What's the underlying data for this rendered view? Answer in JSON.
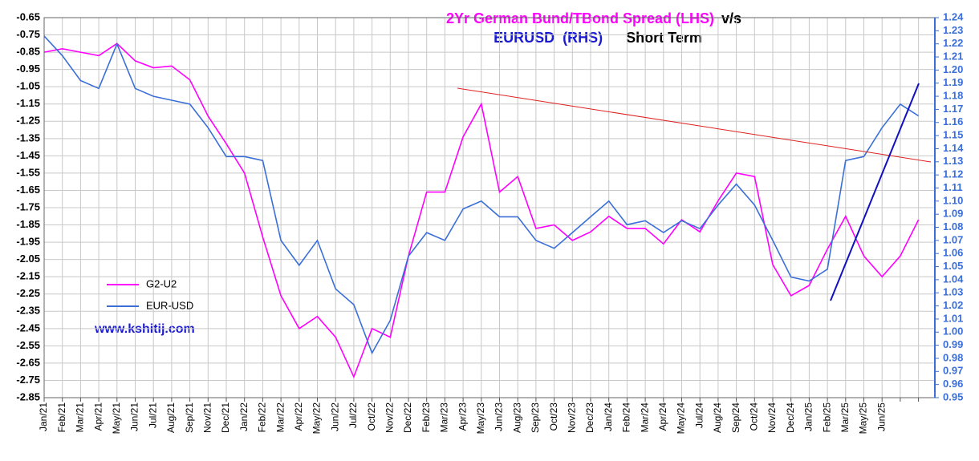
{
  "chart_data": {
    "type": "line",
    "title": [
      "2Yr German Bund/TBond Spread (LHS)",
      "v/s",
      "EURUSD  (RHS)",
      "Short Term"
    ],
    "annotation": "www.kshitij.com",
    "categories": [
      "Jan/21",
      "Feb/21",
      "Mar/21",
      "Apr/21",
      "May/21",
      "Jun/21",
      "Jul/21",
      "Aug/21",
      "Sep/21",
      "Nov/21",
      "Dec/21",
      "Jan/22",
      "Feb/22",
      "Mar/22",
      "Apr/22",
      "May/22",
      "Jun/22",
      "Jul/22",
      "Oct/22",
      "Nov/22",
      "Dec/22",
      "Feb/23",
      "Mar/23",
      "Apr/23",
      "May/23",
      "Jun/23",
      "Aug/23",
      "Sep/23",
      "Oct/23",
      "Nov/23",
      "Dec/23",
      "Jan/24",
      "Feb/24",
      "Mar/24",
      "Apr/24",
      "May/24",
      "Jul/24",
      "Aug/24",
      "Sep/24",
      "Oct/24",
      "Nov/24",
      "Dec/24",
      "Jan/25",
      "Feb/25",
      "Mar/25",
      "May/25",
      "Jun/25",
      null,
      null
    ],
    "series": [
      {
        "name": "G2-U2",
        "color": "#ff00ff",
        "axis": "y",
        "values": [
          -0.85,
          -0.83,
          -0.85,
          -0.87,
          -0.8,
          -0.9,
          -0.94,
          -0.93,
          -1.01,
          -1.22,
          -1.38,
          -1.55,
          -1.92,
          -2.26,
          -2.45,
          -2.38,
          -2.5,
          -2.73,
          -2.45,
          -2.5,
          -2.03,
          -1.66,
          -1.66,
          -1.34,
          -1.15,
          -1.66,
          -1.57,
          -1.87,
          -1.85,
          -1.94,
          -1.89,
          -1.8,
          -1.87,
          -1.87,
          -1.96,
          -1.82,
          -1.89,
          -1.71,
          -1.55,
          -1.57,
          -2.08,
          -2.26,
          -2.2,
          -1.99,
          -1.8,
          -2.03,
          -2.15,
          -2.03,
          -1.82
        ]
      },
      {
        "name": "EUR-USD",
        "color": "#3a6fd8",
        "axis": "y2",
        "values": [
          1.226,
          1.211,
          1.192,
          1.186,
          1.22,
          1.186,
          1.18,
          1.177,
          1.174,
          1.156,
          1.134,
          1.134,
          1.131,
          1.07,
          1.051,
          1.07,
          1.033,
          1.021,
          0.984,
          1.009,
          1.058,
          1.076,
          1.07,
          1.094,
          1.1,
          1.088,
          1.088,
          1.07,
          1.064,
          1.076,
          1.088,
          1.1,
          1.082,
          1.085,
          1.076,
          1.085,
          1.079,
          1.097,
          1.113,
          1.097,
          1.07,
          1.042,
          1.039,
          1.048,
          1.131,
          1.134,
          1.156,
          1.174,
          1.165
        ]
      }
    ],
    "ylim": [
      -2.85,
      -0.65
    ],
    "yticks": [
      -0.65,
      -0.75,
      -0.85,
      -0.95,
      -1.05,
      -1.15,
      -1.25,
      -1.35,
      -1.45,
      -1.55,
      -1.65,
      -1.75,
      -1.85,
      -1.95,
      -2.05,
      -2.15,
      -2.25,
      -2.35,
      -2.45,
      -2.55,
      -2.65,
      -2.75,
      -2.85
    ],
    "y2lim": [
      0.95,
      1.24
    ],
    "y2ticks": [
      1.24,
      1.23,
      1.22,
      1.21,
      {
        "value": 1.2,
        "label": "1.20"
      },
      1.19,
      1.18,
      1.17,
      1.16,
      1.15,
      1.14,
      1.13,
      1.12,
      1.11,
      {
        "value": 1.1,
        "label": "1.10"
      },
      1.09,
      1.08,
      1.07,
      1.06,
      1.05,
      1.04,
      1.03,
      1.02,
      1.01,
      {
        "value": 1,
        "label": "1.00"
      },
      0.99,
      0.98,
      0.97,
      0.96,
      0.95
    ],
    "grid": true
  }
}
